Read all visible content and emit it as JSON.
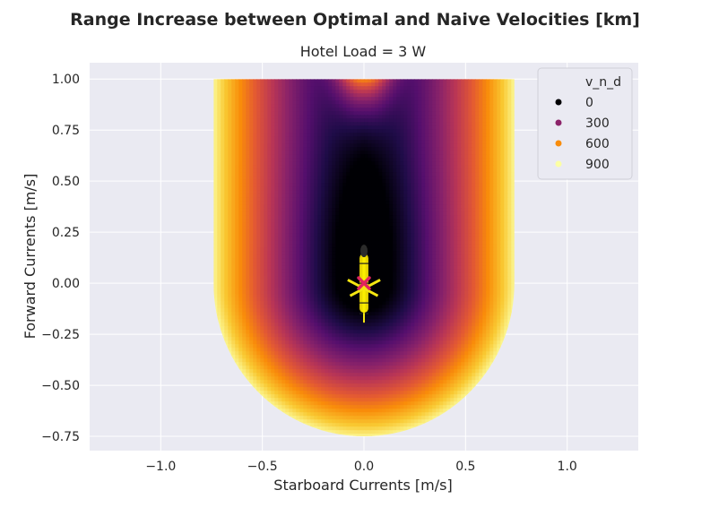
{
  "chart_data": {
    "type": "scatter",
    "title": "Range Increase between Optimal and Naive Velocities [km]",
    "subtitle": "Hotel Load = 3 W",
    "xlabel": "Starboard Currents [m/s]",
    "ylabel": "Forward Currents [m/s]",
    "xlim": [
      -1.35,
      1.35
    ],
    "ylim": [
      -0.82,
      1.08
    ],
    "x_ticks": [
      -1.0,
      -0.5,
      0.0,
      0.5,
      1.0
    ],
    "x_tick_labels": [
      "−1.0",
      "−0.5",
      "0.0",
      "0.5",
      "1.0"
    ],
    "y_ticks": [
      -0.75,
      -0.5,
      -0.25,
      0.0,
      0.25,
      0.5,
      0.75,
      1.0
    ],
    "y_tick_labels": [
      "−0.75",
      "−0.50",
      "−0.25",
      "0.00",
      "0.25",
      "0.50",
      "0.75",
      "1.00"
    ],
    "grid": true,
    "colormap": "inferno",
    "hue_variable": "v_n_d",
    "hue_range": [
      0,
      900
    ],
    "domain": {
      "x_range": [
        -0.74,
        0.74
      ],
      "y_top": 1.0,
      "bottom_radius_x": 0.74,
      "bottom_radius_y": 0.75
    },
    "legend": {
      "title": "v_n_d",
      "placement": "top-right",
      "entries": [
        {
          "label": "0",
          "color": "#000004"
        },
        {
          "label": "300",
          "color": "#8c2369"
        },
        {
          "label": "600",
          "color": "#f98c0a"
        },
        {
          "label": "900",
          "color": "#fcffa4"
        }
      ]
    },
    "glider_marker": {
      "x": 0.0,
      "y": 0.0,
      "color": "#f5e611"
    },
    "center_marker": {
      "x": 0.0,
      "y": 0.0,
      "symbol": "x",
      "color": "#e0245e"
    }
  },
  "colors": {
    "plot_background": "#eaeaf2",
    "grid": "#ffffff",
    "text": "#262626"
  }
}
